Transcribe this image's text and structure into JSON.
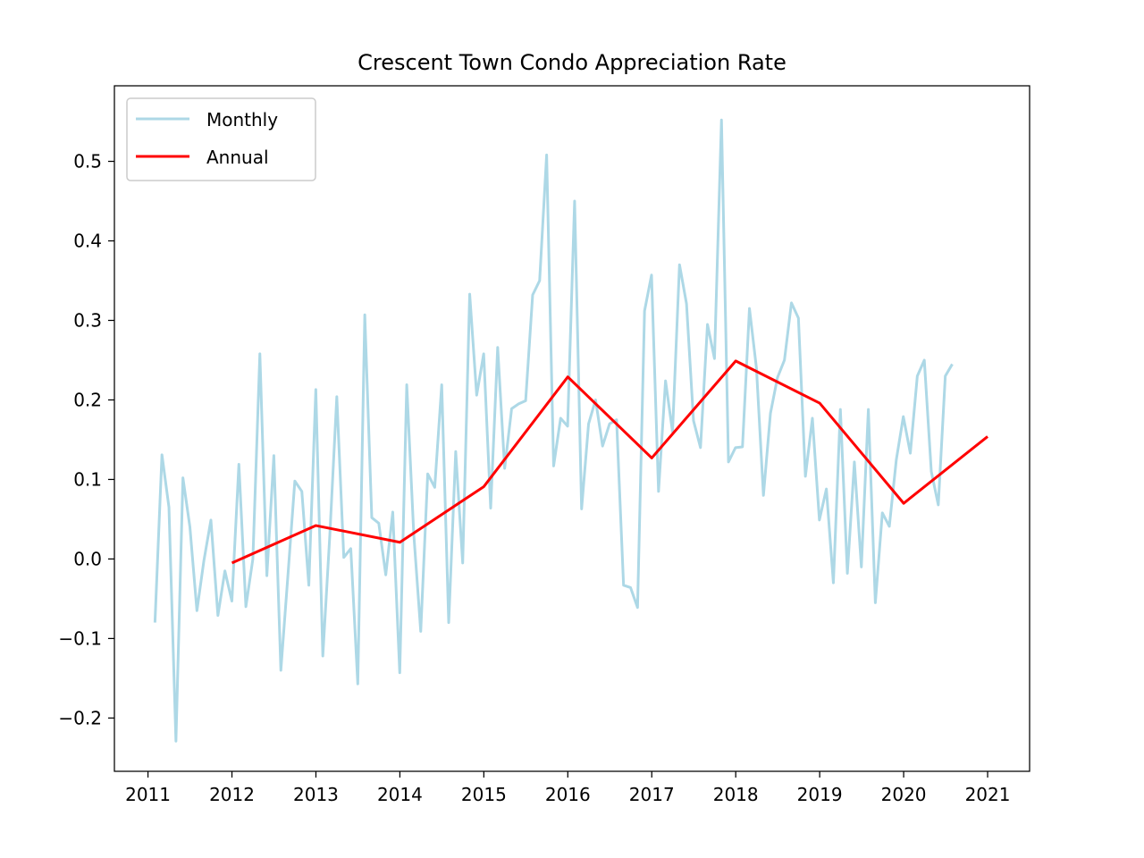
{
  "chart_data": {
    "type": "line",
    "title": "Crescent Town Condo Appreciation Rate",
    "xlabel": "",
    "ylabel": "",
    "xlim": [
      2010.6,
      2021.5
    ],
    "ylim": [
      -0.267,
      0.595
    ],
    "x_ticks": [
      2011,
      2012,
      2013,
      2014,
      2015,
      2016,
      2017,
      2018,
      2019,
      2020,
      2021
    ],
    "x_tick_labels": [
      "2011",
      "2012",
      "2013",
      "2014",
      "2015",
      "2016",
      "2017",
      "2018",
      "2019",
      "2020",
      "2021"
    ],
    "y_ticks": [
      -0.2,
      -0.1,
      0.0,
      0.1,
      0.2,
      0.3,
      0.4,
      0.5
    ],
    "y_tick_labels": [
      "−0.2",
      "−0.1",
      "0.0",
      "0.1",
      "0.2",
      "0.3",
      "0.4",
      "0.5"
    ],
    "grid": false,
    "legend_position": "upper-left",
    "series": [
      {
        "name": "Monthly",
        "color": "#add8e6",
        "x_start": 2011.083,
        "x_step": 0.0833,
        "values": [
          -0.08,
          0.131,
          0.065,
          -0.229,
          0.102,
          0.04,
          -0.065,
          -0.002,
          0.049,
          -0.071,
          -0.015,
          -0.053,
          0.119,
          -0.06,
          0.0,
          0.258,
          -0.021,
          0.13,
          -0.14,
          -0.022,
          0.098,
          0.085,
          -0.033,
          0.213,
          -0.122,
          0.03,
          0.204,
          0.002,
          0.013,
          -0.157,
          0.307,
          0.052,
          0.045,
          -0.02,
          0.059,
          -0.143,
          0.219,
          0.032,
          -0.091,
          0.107,
          0.09,
          0.219,
          -0.08,
          0.135,
          -0.005,
          0.333,
          0.206,
          0.258,
          0.064,
          0.266,
          0.114,
          0.189,
          0.195,
          0.199,
          0.332,
          0.35,
          0.508,
          0.117,
          0.177,
          0.167,
          0.45,
          0.063,
          0.17,
          0.2,
          0.142,
          0.17,
          0.175,
          -0.033,
          -0.036,
          -0.061,
          0.312,
          0.357,
          0.085,
          0.224,
          0.16,
          0.37,
          0.321,
          0.174,
          0.14,
          0.295,
          0.252,
          0.552,
          0.122,
          0.14,
          0.141,
          0.315,
          0.24,
          0.08,
          0.183,
          0.228,
          0.25,
          0.322,
          0.303,
          0.104,
          0.177,
          0.049,
          0.088,
          -0.03,
          0.188,
          -0.018,
          0.122,
          -0.01,
          0.188,
          -0.055,
          0.058,
          0.041,
          0.125,
          0.179,
          0.133,
          0.23,
          0.25,
          0.11,
          0.068,
          0.23,
          0.245
        ]
      },
      {
        "name": "Annual",
        "color": "#ff0000",
        "x": [
          2012,
          2013,
          2014,
          2015,
          2016,
          2017,
          2018,
          2019,
          2020,
          2021
        ],
        "values": [
          -0.005,
          0.042,
          0.021,
          0.091,
          0.229,
          0.127,
          0.249,
          0.196,
          0.07,
          0.154
        ]
      }
    ]
  }
}
